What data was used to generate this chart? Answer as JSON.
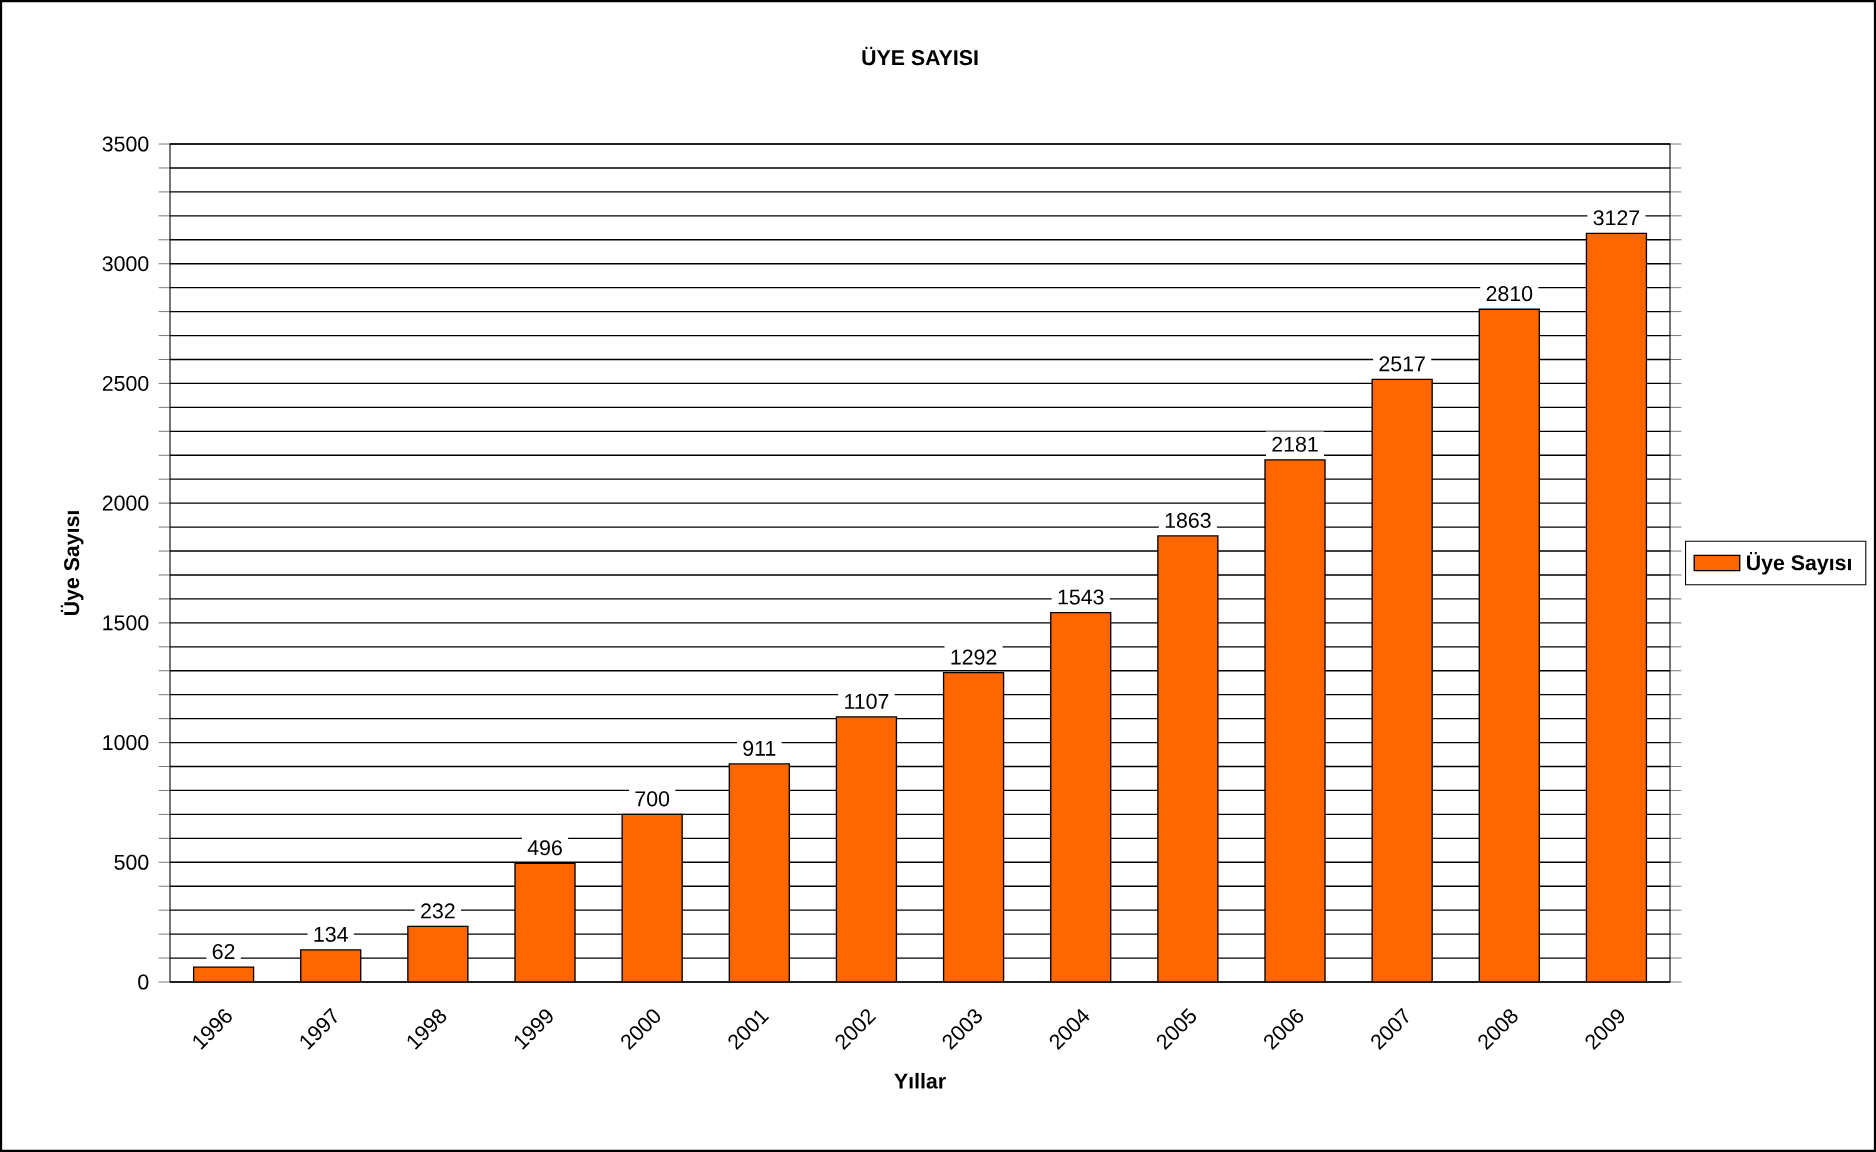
{
  "chart_data": {
    "type": "bar",
    "title": "ÜYE SAYISI",
    "xlabel": "Yıllar",
    "ylabel": "Üye Sayısı",
    "categories": [
      "1996",
      "1997",
      "1998",
      "1999",
      "2000",
      "2001",
      "2002",
      "2003",
      "2004",
      "2005",
      "2006",
      "2007",
      "2008",
      "2009"
    ],
    "series": [
      {
        "name": "Üye Sayısı",
        "color": "#ff6600",
        "values": [
          62,
          134,
          232,
          496,
          700,
          911,
          1107,
          1292,
          1543,
          1863,
          2181,
          2517,
          2810,
          3127
        ]
      }
    ],
    "ylim": [
      0,
      3500
    ],
    "yticks": [
      0,
      {
        "value": 100,
        "label": null
      },
      {
        "value": 200,
        "label": null
      },
      {
        "value": 300,
        "label": null
      },
      {
        "value": 400,
        "label": null
      },
      500,
      {
        "value": 600,
        "label": null
      },
      {
        "value": 700,
        "label": null
      },
      {
        "value": 800,
        "label": null
      },
      {
        "value": 900,
        "label": null
      },
      1000,
      {
        "value": 1100,
        "label": null
      },
      {
        "value": 1200,
        "label": null
      },
      {
        "value": 1300,
        "label": null
      },
      {
        "value": 1400,
        "label": null
      },
      1500,
      {
        "value": 1600,
        "label": null
      },
      {
        "value": 1700,
        "label": null
      },
      {
        "value": 1800,
        "label": null
      },
      {
        "value": 1900,
        "label": null
      },
      2000,
      {
        "value": 2100,
        "label": null
      },
      {
        "value": 2200,
        "label": null
      },
      {
        "value": 2300,
        "label": null
      },
      {
        "value": 2400,
        "label": null
      },
      2500,
      {
        "value": 2600,
        "label": null
      },
      {
        "value": 2700,
        "label": null
      },
      {
        "value": 2800,
        "label": null
      },
      {
        "value": 2900,
        "label": null
      },
      3000,
      {
        "value": 3100,
        "label": null
      },
      {
        "value": 3200,
        "label": null
      },
      {
        "value": 3300,
        "label": null
      },
      {
        "value": 3400,
        "label": null
      },
      3500
    ],
    "grid": "y",
    "legend": "right",
    "data_labels": true
  }
}
